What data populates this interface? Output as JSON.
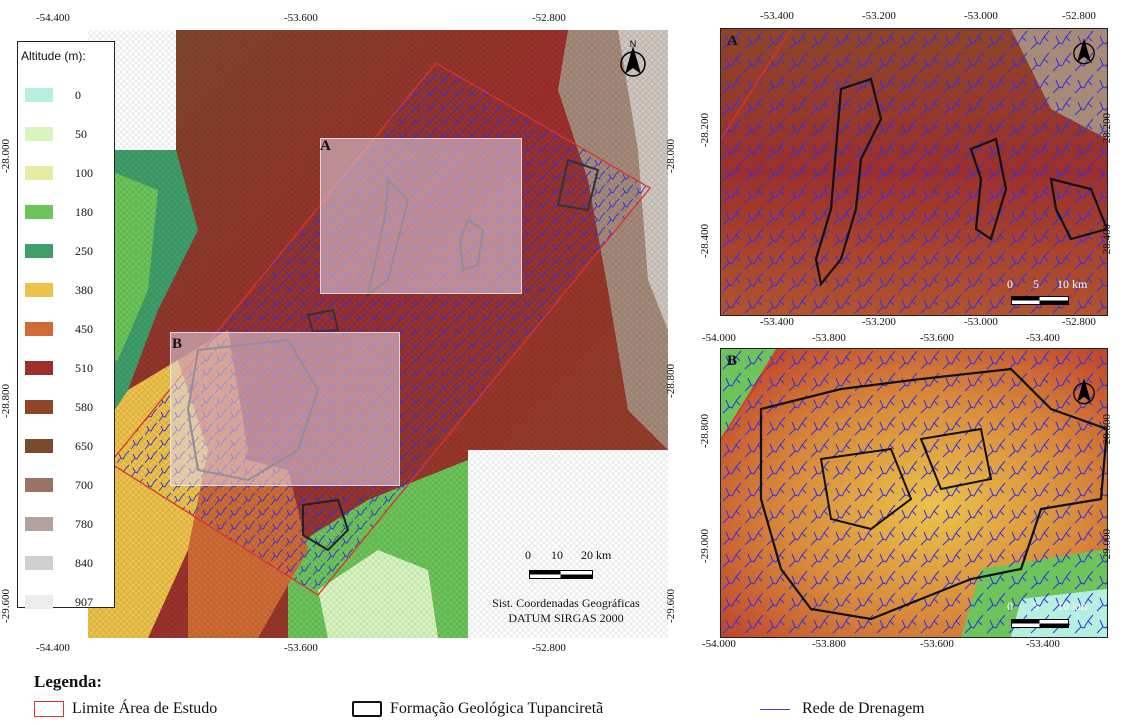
{
  "main_map": {
    "top_ticks": [
      "-54.400",
      "-53.600",
      "-52.800"
    ],
    "bottom_ticks": [
      "-54.400",
      "-53.600",
      "-52.800"
    ],
    "left_ticks": [
      "-28.000",
      "-28.800",
      "-29.600"
    ],
    "right_ticks": [
      "-28.000",
      "-28.800",
      "-29.600"
    ],
    "box_a_label": "A",
    "box_b_label": "B"
  },
  "altitude_legend": {
    "title": "Altitude (m):",
    "items": [
      {
        "label": "0",
        "color": "#b5efe0"
      },
      {
        "label": "50",
        "color": "#d8f5c0"
      },
      {
        "label": "100",
        "color": "#e8eca0"
      },
      {
        "label": "180",
        "color": "#6cc45a"
      },
      {
        "label": "250",
        "color": "#3f9e6a"
      },
      {
        "label": "380",
        "color": "#ecc24a"
      },
      {
        "label": "450",
        "color": "#cf6b34"
      },
      {
        "label": "510",
        "color": "#9c2f2c"
      },
      {
        "label": "580",
        "color": "#8f4428"
      },
      {
        "label": "650",
        "color": "#7a4a2e"
      },
      {
        "label": "700",
        "color": "#9a7462"
      },
      {
        "label": "780",
        "color": "#b3a29c"
      },
      {
        "label": "840",
        "color": "#cfcfcf"
      },
      {
        "label": "907",
        "color": "#ececec"
      }
    ]
  },
  "main_scale": {
    "labels": [
      "0",
      "10",
      "20 km"
    ]
  },
  "crs": {
    "line1": "Sist. Coordenadas Geográficas",
    "line2": "DATUM SIRGAS 2000"
  },
  "north_label": "N",
  "inset_a": {
    "label": "A",
    "top_ticks": [
      "-53.400",
      "-53.200",
      "-53.000",
      "-52.800"
    ],
    "bottom_ticks": [
      "-53.400",
      "-53.200",
      "-53.000",
      "-52.800"
    ],
    "left_ticks": [
      "-28.200",
      "-28.400"
    ],
    "right_ticks": [
      "-28.200",
      "-28.400"
    ],
    "scale_labels": [
      "0",
      "5",
      "10 km"
    ]
  },
  "inset_b": {
    "label": "B",
    "top_ticks": [
      "-54.000",
      "-53.800",
      "-53.600",
      "-53.400"
    ],
    "bottom_ticks": [
      "-54.000",
      "-53.800",
      "-53.600",
      "-53.400"
    ],
    "left_ticks": [
      "-28.800",
      "-29.000"
    ],
    "right_ticks": [
      "-28.800",
      "-29.000"
    ],
    "scale_labels": [
      "0",
      "5",
      "10 km"
    ]
  },
  "bottom_legend": {
    "title": "Legenda:",
    "study_area": "Limite Área de Estudo",
    "formation": "Formação Geológica Tupanciretã",
    "drainage": "Rede de Drenagem",
    "study_area_color": "#e03030",
    "formation_color": "#111111",
    "drainage_color": "#4040e0"
  }
}
